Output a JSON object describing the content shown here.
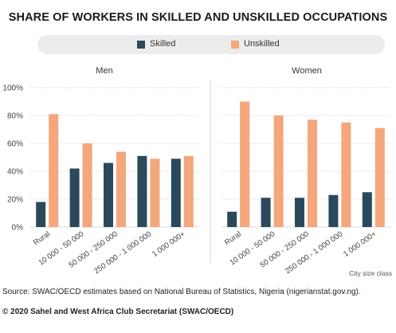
{
  "title": "SHARE OF WORKERS IN SKILLED AND UNSKILLED OCCUPATIONS",
  "source": "Source: SWAC/OECD estimates based on National Bureau of Statistics, Nigeria (nigerianstat.gov.ng).",
  "copyright": "© 2020 Sahel and West Africa Club Secretariat (SWAC/OECD)",
  "legend": [
    {
      "label": "Skilled",
      "color": "#2a4a5c"
    },
    {
      "label": "Unskilled",
      "color": "#f4a67c"
    }
  ],
  "chart_data": {
    "type": "bar",
    "categories": [
      "Rural",
      "10 000 - 50 000",
      "50 000 - 250 000",
      "250 000 - 1 000 000",
      "1 000 000+"
    ],
    "xlabel": "City size class",
    "ylim": [
      0,
      100
    ],
    "yticks": [
      "0%",
      "20%",
      "40%",
      "60%",
      "80%",
      "100%"
    ],
    "grid": true,
    "legend_position": "top",
    "panels": [
      {
        "title": "Men",
        "series": [
          {
            "name": "Skilled",
            "values": [
              18,
              42,
              46,
              51,
              49
            ]
          },
          {
            "name": "Unskilled",
            "values": [
              81,
              60,
              54,
              49,
              51
            ]
          }
        ]
      },
      {
        "title": "Women",
        "series": [
          {
            "name": "Skilled",
            "values": [
              11,
              21,
              21,
              23,
              25
            ]
          },
          {
            "name": "Unskilled",
            "values": [
              90,
              80,
              77,
              75,
              71
            ]
          }
        ]
      }
    ]
  }
}
